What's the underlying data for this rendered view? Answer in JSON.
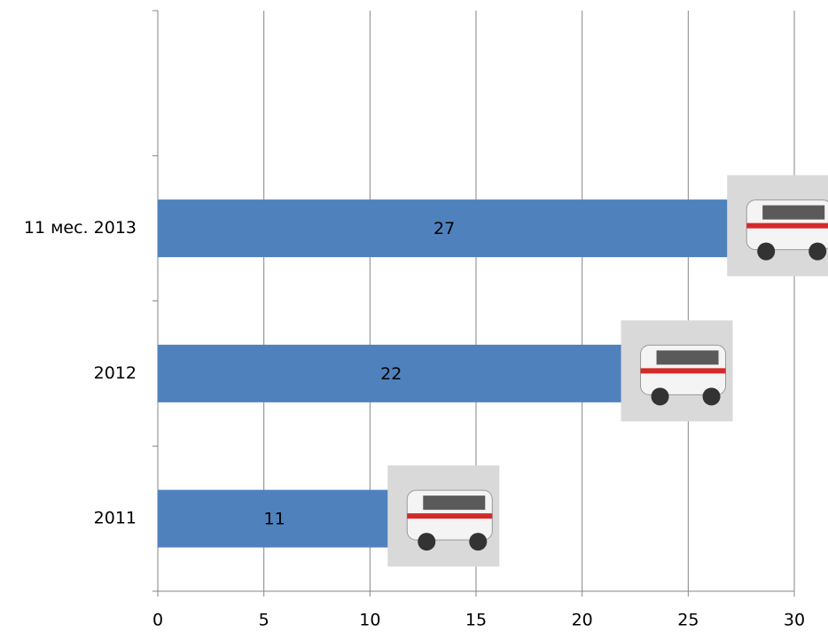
{
  "chart_data": {
    "type": "barh",
    "categories": [
      "2011",
      "2012",
      "11 мес. 2013",
      null
    ],
    "values": [
      11,
      22,
      27,
      null
    ],
    "color": "#4f81bd",
    "xlim": [
      0,
      30
    ],
    "xticks": [
      0,
      5,
      10,
      15,
      20,
      25,
      30
    ],
    "grid": true
  }
}
